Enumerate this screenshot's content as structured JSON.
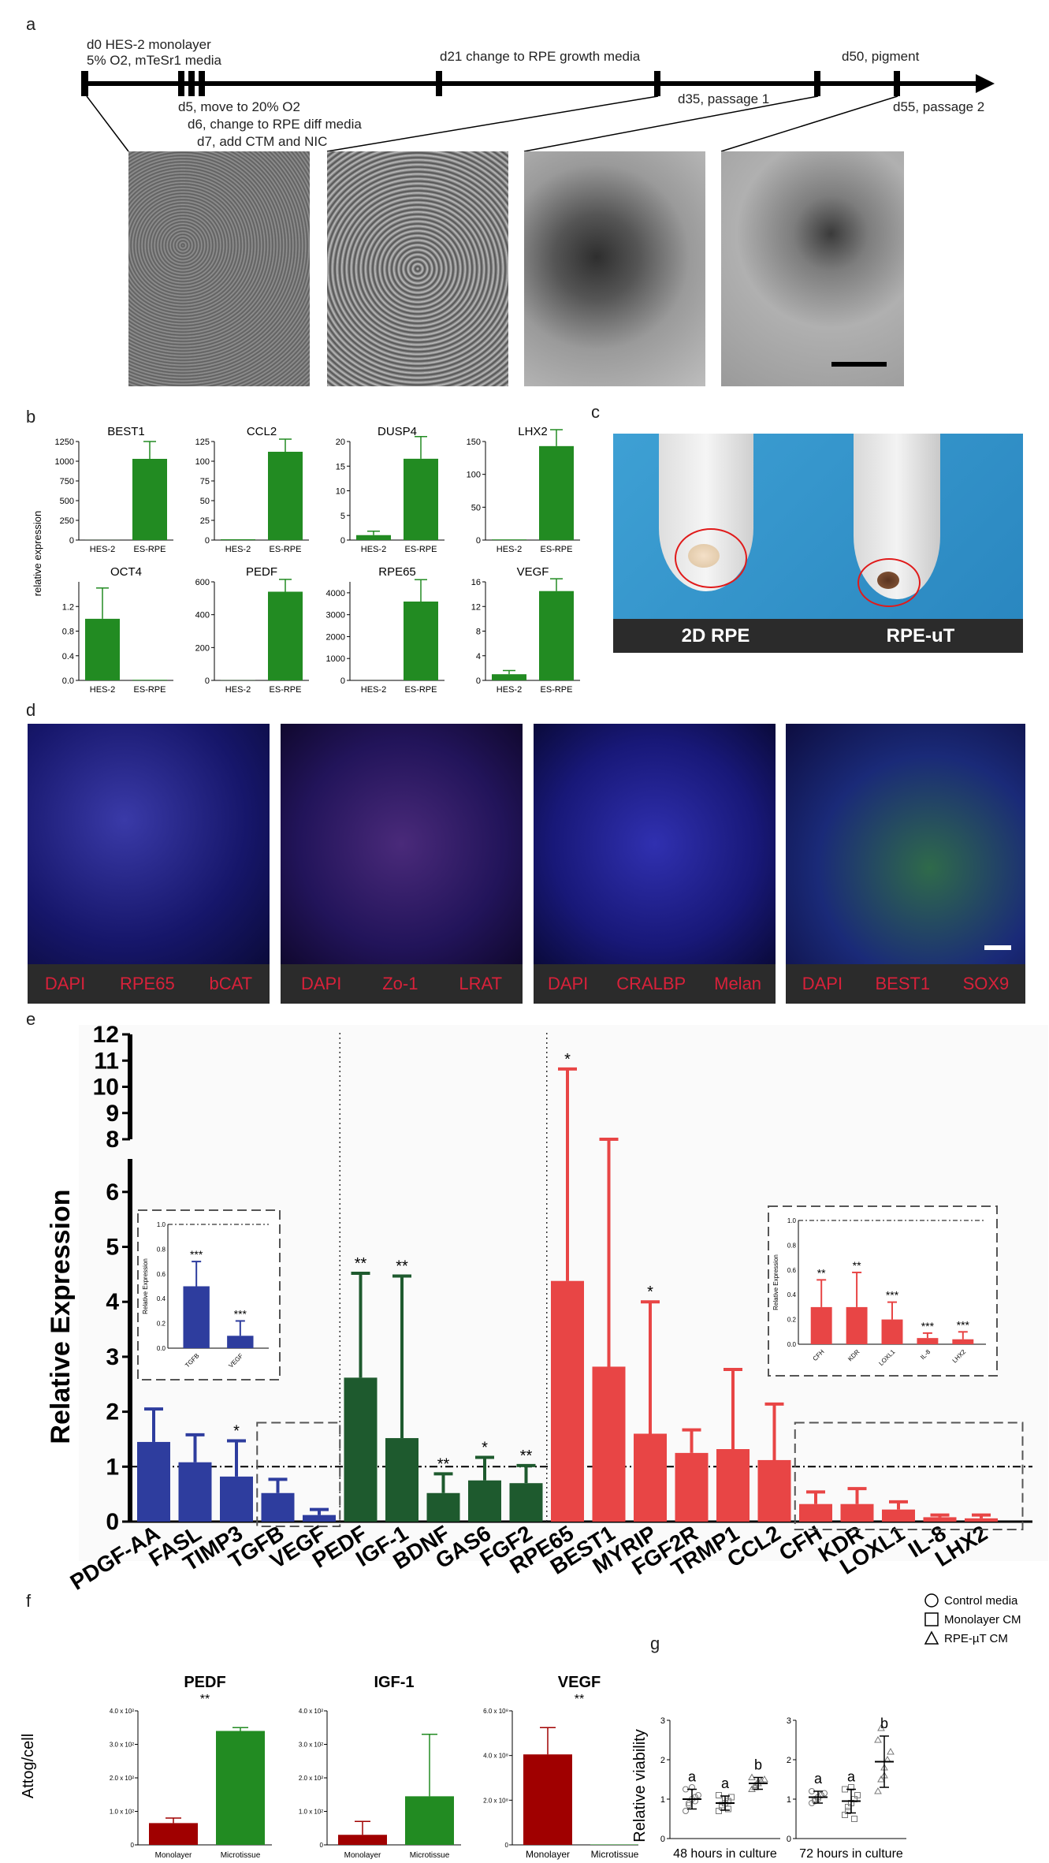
{
  "panels": [
    "a",
    "b",
    "c",
    "d",
    "e",
    "f",
    "g"
  ],
  "timeline": [
    {
      "label": "d0 HES-2 monolayer"
    },
    {
      "label": "5% O2, mTeSr1 media"
    },
    {
      "label": "d5, move to 20% O2"
    },
    {
      "label": "d6, change to RPE diff media"
    },
    {
      "label": "d7, add CTM and NIC"
    },
    {
      "label": "d21 change to RPE growth media"
    },
    {
      "label": "d35, passage 1"
    },
    {
      "label": "d50, pigment"
    },
    {
      "label": "d55, passage 2"
    }
  ],
  "panel_c": {
    "labels": [
      "2D RPE",
      "RPE-uT"
    ]
  },
  "panel_d": {
    "captions": [
      [
        "DAPI",
        "RPE65",
        "bCAT"
      ],
      [
        "DAPI",
        "Zo-1",
        "LRAT"
      ],
      [
        "DAPI",
        "CRALBP",
        "Melan"
      ],
      [
        "DAPI",
        "BEST1",
        "SOX9"
      ]
    ]
  },
  "colors": {
    "blue": "#2e3d9e",
    "dkgreen": "#1e5a2e",
    "red": "#e84545",
    "green": "#228b22",
    "maroon": "#a00000"
  },
  "chart_data": [
    {
      "id": "b",
      "type": "bar",
      "ylabel": "relative expression",
      "categories": [
        "HES-2",
        "ES-RPE"
      ],
      "subplots": [
        {
          "title": "BEST1",
          "ylim": [
            0,
            1250
          ],
          "ticks": [
            0,
            250,
            500,
            750,
            1000,
            1250
          ],
          "values": [
            1,
            1030
          ],
          "err": [
            0,
            220
          ]
        },
        {
          "title": "CCL2",
          "ylim": [
            0,
            125
          ],
          "ticks": [
            0,
            25,
            50,
            75,
            100,
            125
          ],
          "values": [
            1,
            112
          ],
          "err": [
            0,
            16
          ]
        },
        {
          "title": "DUSP4",
          "ylim": [
            0,
            20
          ],
          "ticks": [
            0,
            5,
            10,
            15,
            20
          ],
          "values": [
            1,
            16.5
          ],
          "err": [
            0.8,
            4.5
          ]
        },
        {
          "title": "LHX2",
          "ylim": [
            0,
            150
          ],
          "ticks": [
            0,
            50,
            100,
            150
          ],
          "values": [
            1,
            143
          ],
          "err": [
            0,
            25
          ]
        },
        {
          "title": "OCT4",
          "ylim": [
            0,
            1.6
          ],
          "ticks": [
            0,
            0.4,
            0.8,
            1.2
          ],
          "tick_labels": [
            "0.0",
            "0.4",
            "0.8",
            "1.2"
          ],
          "values": [
            1,
            0.01
          ],
          "err": [
            0.5,
            0
          ]
        },
        {
          "title": "PEDF",
          "ylim": [
            0,
            600
          ],
          "ticks": [
            0,
            200,
            400,
            600
          ],
          "values": [
            1,
            540
          ],
          "err": [
            0,
            75
          ]
        },
        {
          "title": "RPE65",
          "ylim": [
            0,
            4500
          ],
          "ticks": [
            0,
            1000,
            2000,
            3000,
            4000
          ],
          "values": [
            1,
            3600
          ],
          "err": [
            0,
            1000
          ]
        },
        {
          "title": "VEGF",
          "ylim": [
            0,
            16
          ],
          "ticks": [
            0,
            4,
            8,
            12,
            16
          ],
          "values": [
            1,
            14.5
          ],
          "err": [
            0.6,
            2
          ]
        }
      ]
    },
    {
      "id": "e",
      "type": "bar",
      "ylabel": "Relative Expression",
      "ticks_lower": [
        0,
        1,
        2,
        3,
        4,
        5,
        6
      ],
      "ticks_upper": [
        8,
        9,
        10,
        11,
        12
      ],
      "categories": [
        "PDGF-AA",
        "FASL",
        "TIMP3",
        "TGFB",
        "VEGF",
        "PEDF",
        "IGF-1",
        "BDNF",
        "GAS6",
        "FGF2",
        "RPE65",
        "BEST1",
        "MYRIP",
        "FGF2R",
        "TRMP1",
        "CCL2",
        "CFH",
        "KDR",
        "LOXL1",
        "IL-8",
        "LHX2"
      ],
      "values": [
        1.45,
        1.08,
        0.82,
        0.52,
        0.12,
        2.62,
        1.52,
        0.52,
        0.75,
        0.7,
        4.38,
        2.82,
        1.6,
        1.25,
        1.32,
        1.12,
        0.32,
        0.32,
        0.22,
        0.08,
        0.06
      ],
      "err": [
        0.6,
        0.5,
        0.65,
        0.25,
        0.1,
        1.9,
        2.95,
        0.35,
        0.42,
        0.32,
        6.3,
        3.7,
        2.4,
        0.42,
        1.45,
        1.02,
        0.22,
        0.28,
        0.14,
        0.04,
        0.06
      ],
      "groups": [
        "blue",
        "blue",
        "blue",
        "blue",
        "blue",
        "dkgreen",
        "dkgreen",
        "dkgreen",
        "dkgreen",
        "dkgreen",
        "red",
        "red",
        "red",
        "red",
        "red",
        "red",
        "red",
        "red",
        "red",
        "red",
        "red"
      ],
      "sig": [
        "",
        "",
        "*",
        "",
        "",
        "**",
        "**",
        "**",
        "*",
        "**",
        "*",
        "",
        "*",
        "",
        "",
        "",
        "",
        "",
        "",
        "",
        ""
      ],
      "insets": [
        {
          "categories": [
            "TGFB",
            "VEGF"
          ],
          "values": [
            0.5,
            0.1
          ],
          "err": [
            0.2,
            0.12
          ],
          "sig": [
            "***",
            "***"
          ],
          "ylabel": "Relative Expression",
          "color": "blue",
          "tick_labels": [
            "0.0",
            "0.2",
            "0.4",
            "0.6",
            "0.8",
            "1.0"
          ]
        },
        {
          "categories": [
            "CFH",
            "KDR",
            "LOXL1",
            "IL-8",
            "LHX2"
          ],
          "values": [
            0.3,
            0.3,
            0.2,
            0.05,
            0.04
          ],
          "err": [
            0.22,
            0.28,
            0.14,
            0.04,
            0.06
          ],
          "sig": [
            "**",
            "**",
            "***",
            "***",
            "***"
          ],
          "ylabel": "Relative Expression",
          "color": "red",
          "tick_labels": [
            "0.0",
            "0.2",
            "0.4",
            "0.6",
            "0.8",
            "1.0"
          ]
        }
      ]
    },
    {
      "id": "f",
      "type": "bar",
      "ylabel": "Attog/cell",
      "categories": [
        "Monolayer",
        "Microtissue"
      ],
      "subplots": [
        {
          "title": "PEDF",
          "sig": "**",
          "ylim": [
            0,
            400
          ],
          "tick_labels": [
            "0",
            "1.0 x 10²",
            "2.0 x 10²",
            "3.0 x 10²",
            "4.0 x 10²"
          ],
          "values": [
            65,
            340
          ],
          "err": [
            15,
            10
          ],
          "colors": [
            "#a00000",
            "#228b22"
          ]
        },
        {
          "title": "IGF-1",
          "sig": "",
          "ylim": [
            0,
            400
          ],
          "tick_labels": [
            "0",
            "1.0 x 10²",
            "2.0 x 10²",
            "3.0 x 10²",
            "4.0 x 10²"
          ],
          "values": [
            30,
            145
          ],
          "err": [
            40,
            185
          ],
          "colors": [
            "#a00000",
            "#228b22"
          ]
        },
        {
          "title": "VEGF",
          "sig": "**",
          "ylim": [
            0,
            6
          ],
          "tick_labels": [
            "0",
            "2.0 x 10⁸",
            "4.0 x 10⁸",
            "6.0 x 10⁸"
          ],
          "values": [
            4.05,
            0.02
          ],
          "err": [
            1.2,
            0
          ],
          "colors": [
            "#a00000",
            "#228b22"
          ]
        }
      ]
    },
    {
      "id": "g",
      "type": "scatter",
      "ylabel": "Relative viability",
      "ylim": [
        0,
        3
      ],
      "ticks": [
        0,
        1,
        2,
        3
      ],
      "legend": [
        "Control media",
        "Monolayer CM",
        "RPE-µT CM"
      ],
      "subplots": [
        {
          "xlabel": "48 hours in culture",
          "groups": [
            {
              "mean": 1.0,
              "sd": 0.25,
              "letter": "a",
              "points": [
                0.7,
                0.9,
                1.0,
                1.05,
                1.1,
                1.25,
                0.85,
                1.3,
                0.95
              ]
            },
            {
              "mean": 0.9,
              "sd": 0.18,
              "letter": "a",
              "points": [
                0.7,
                0.8,
                0.9,
                0.95,
                1.05,
                1.1,
                0.85,
                1.0,
                0.75
              ]
            },
            {
              "mean": 1.4,
              "sd": 0.15,
              "letter": "b",
              "points": [
                1.25,
                1.35,
                1.4,
                1.45,
                1.5,
                1.55,
                1.3,
                1.45
              ]
            }
          ]
        },
        {
          "xlabel": "72 hours in culture",
          "groups": [
            {
              "mean": 1.05,
              "sd": 0.15,
              "letter": "a",
              "points": [
                0.9,
                1.0,
                1.05,
                1.1,
                1.15,
                1.2,
                0.95,
                1.0,
                1.1
              ]
            },
            {
              "mean": 0.95,
              "sd": 0.3,
              "letter": "a",
              "points": [
                0.6,
                0.7,
                0.9,
                1.0,
                1.1,
                1.25,
                0.8,
                1.3,
                0.5
              ]
            },
            {
              "mean": 1.95,
              "sd": 0.65,
              "letter": "b",
              "points": [
                1.2,
                1.5,
                1.8,
                2.0,
                2.2,
                2.5,
                2.8,
                1.6
              ]
            }
          ]
        }
      ]
    }
  ]
}
